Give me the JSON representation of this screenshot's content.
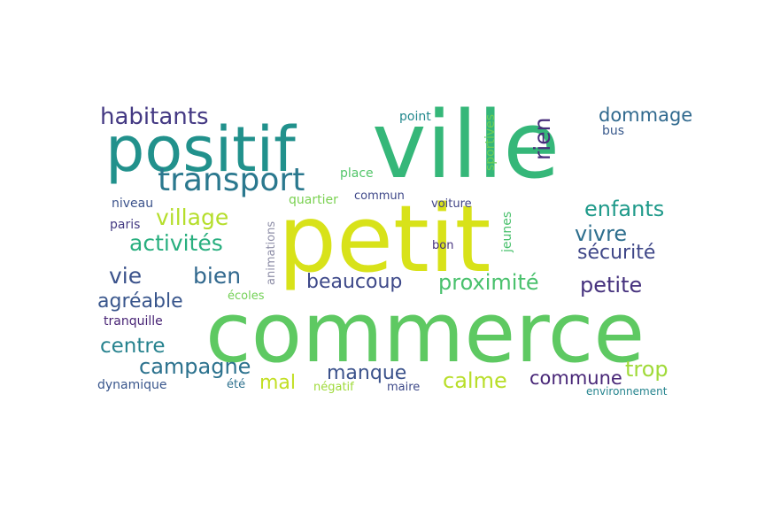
{
  "words": [
    {
      "text": "commerce",
      "color": "#5ec962"
    },
    {
      "text": "petit",
      "color": "#d8e219"
    },
    {
      "text": "ville",
      "color": "#35b779"
    },
    {
      "text": "positif",
      "color": "#21918c"
    },
    {
      "text": "transport",
      "color": "#2a788e"
    },
    {
      "text": "habitants",
      "color": "#443983"
    },
    {
      "text": "village",
      "color": "#b5de2b"
    },
    {
      "text": "activités",
      "color": "#29af7f"
    },
    {
      "text": "vie",
      "color": "#3b528b"
    },
    {
      "text": "bien",
      "color": "#31688e"
    },
    {
      "text": "beaucoup",
      "color": "#3e4989"
    },
    {
      "text": "proximité",
      "color": "#4ac16d"
    },
    {
      "text": "agréable",
      "color": "#39568c"
    },
    {
      "text": "centre",
      "color": "#26828e"
    },
    {
      "text": "campagne",
      "color": "#2c728e"
    },
    {
      "text": "mal",
      "color": "#c2df23"
    },
    {
      "text": "manque",
      "color": "#3b528b"
    },
    {
      "text": "calme",
      "color": "#b8de29"
    },
    {
      "text": "commune",
      "color": "#482677"
    },
    {
      "text": "trop",
      "color": "#a0da39"
    },
    {
      "text": "dommage",
      "color": "#30698e"
    },
    {
      "text": "enfants",
      "color": "#1f9a8a"
    },
    {
      "text": "vivre",
      "color": "#2e6f8e"
    },
    {
      "text": "sécurité",
      "color": "#3f4788"
    },
    {
      "text": "petite",
      "color": "#46327e"
    },
    {
      "text": "rien",
      "color": "#472d7b"
    },
    {
      "text": "point",
      "color": "#23898e"
    },
    {
      "text": "bus",
      "color": "#38598c"
    },
    {
      "text": "sportives",
      "color": "#6ece58"
    },
    {
      "text": "place",
      "color": "#52c569"
    },
    {
      "text": "quartier",
      "color": "#7ad151"
    },
    {
      "text": "commun",
      "color": "#3f4889"
    },
    {
      "text": "niveau",
      "color": "#3b528b"
    },
    {
      "text": "paris",
      "color": "#443a83"
    },
    {
      "text": "voiture",
      "color": "#414487"
    },
    {
      "text": "animations",
      "color": "#8f8fa8"
    },
    {
      "text": "jeunes",
      "color": "#4ac16d"
    },
    {
      "text": "bon",
      "color": "#46327e"
    },
    {
      "text": "écoles",
      "color": "#73d056"
    },
    {
      "text": "tranquille",
      "color": "#482475"
    },
    {
      "text": "dynamique",
      "color": "#39568c"
    },
    {
      "text": "été",
      "color": "#2d708e"
    },
    {
      "text": "négatif",
      "color": "#9fda3a"
    },
    {
      "text": "maire",
      "color": "#3e4a89"
    },
    {
      "text": "environnement",
      "color": "#25848e"
    }
  ]
}
